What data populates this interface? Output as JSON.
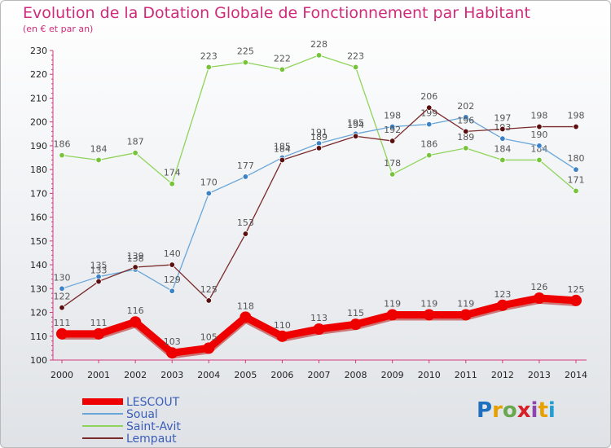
{
  "title": "Evolution de la Dotation Globale de Fonctionnement par Habitant",
  "subtitle": "(en € et par an)",
  "logo": {
    "text": "Proxiti",
    "colors": [
      "#1f6fbf",
      "#e8a000",
      "#6aa84f",
      "#d61f26",
      "#8e44ad",
      "#e8a000",
      "#1f9fd6"
    ]
  },
  "chart_data": {
    "type": "line",
    "x": [
      "2000",
      "2001",
      "2002",
      "2003",
      "2004",
      "2005",
      "2006",
      "2007",
      "2008",
      "2009",
      "2010",
      "2011",
      "2012",
      "2013",
      "2014"
    ],
    "ylim": [
      100,
      230
    ],
    "yticks": [
      100,
      110,
      120,
      130,
      140,
      150,
      160,
      170,
      180,
      190,
      200,
      210,
      220,
      230
    ],
    "grid": false,
    "legend_position": "bottom-left",
    "series": [
      {
        "name": "Saint-Avit",
        "color": "#8fd45a",
        "point": "#77c43a",
        "values": [
          186,
          184,
          187,
          174,
          223,
          225,
          222,
          228,
          223,
          178,
          186,
          189,
          184,
          184,
          171
        ]
      },
      {
        "name": "Soual",
        "color": "#6aa6d8",
        "point": "#3c82c4",
        "values": [
          130,
          135,
          138,
          129,
          170,
          177,
          185,
          191,
          195,
          198,
          199,
          202,
          193,
          190,
          180
        ]
      },
      {
        "name": "Lempaut",
        "color": "#7a2a2a",
        "point": "#5a1010",
        "values": [
          122,
          133,
          139,
          140,
          125,
          153,
          184,
          189,
          194,
          192,
          206,
          196,
          197,
          198,
          198
        ]
      },
      {
        "name": "LESCOUT",
        "color": "#ee0000",
        "point": "#ee0000",
        "values": [
          111,
          111,
          116,
          103,
          105,
          118,
          110,
          113,
          115,
          119,
          119,
          119,
          123,
          126,
          125
        ],
        "thick": true
      }
    ]
  }
}
